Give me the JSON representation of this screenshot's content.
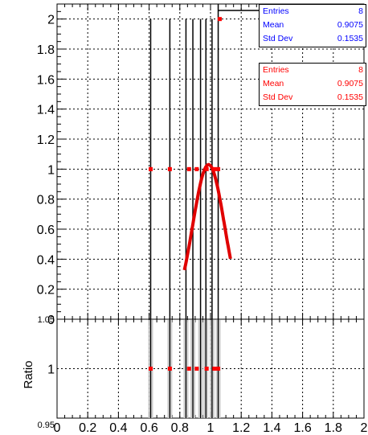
{
  "chart_data": [
    {
      "type": "scatter",
      "panel": "main",
      "xlim": [
        0,
        2
      ],
      "ylim": [
        0,
        2.1
      ],
      "yticks": [
        "0",
        "0.2",
        "0.4",
        "0.6",
        "0.8",
        "1",
        "1.2",
        "1.4",
        "1.6",
        "1.8",
        "2"
      ],
      "grid": true,
      "title": "",
      "xlabel": "",
      "ylabel": "",
      "series": [
        {
          "kind": "histogram",
          "color": "#000000",
          "points": [
            {
              "x": 0.61,
              "y": 2
            },
            {
              "x": 0.735,
              "y": 2
            },
            {
              "x": 0.84,
              "y": 2
            },
            {
              "x": 0.885,
              "y": 2
            },
            {
              "x": 0.935,
              "y": 2
            },
            {
              "x": 0.97,
              "y": 2
            },
            {
              "x": 1.01,
              "y": 2
            },
            {
              "x": 1.05,
              "y": 2
            }
          ]
        },
        {
          "kind": "markers",
          "color": "#ff0000",
          "points": [
            {
              "x": 0.61,
              "y": 1
            },
            {
              "x": 0.735,
              "y": 1
            },
            {
              "x": 0.86,
              "y": 1
            },
            {
              "x": 0.91,
              "y": 1
            },
            {
              "x": 0.975,
              "y": 1
            },
            {
              "x": 1.025,
              "y": 1
            },
            {
              "x": 1.05,
              "y": 1
            },
            {
              "x": 1.06,
              "y": 2
            }
          ]
        },
        {
          "kind": "fit",
          "color": "#e00000",
          "mean": 0.9875,
          "sigma": 0.104,
          "amplitude": 1.03,
          "range": [
            0.83,
            1.13
          ]
        }
      ],
      "stats_boxes": [
        {
          "id": "blue",
          "color": "#0000ff",
          "entries_label": "Entries",
          "entries": "8",
          "mean_label": "Mean",
          "mean": "0.9075",
          "std_label": "Std Dev",
          "std": "0.1535"
        },
        {
          "id": "red",
          "color": "#ff0000",
          "entries_label": "Entries",
          "entries": "8",
          "mean_label": "Mean",
          "mean": "0.9075",
          "std_label": "Std Dev",
          "std": "0.1535"
        }
      ]
    },
    {
      "type": "scatter",
      "panel": "ratio",
      "xlim": [
        0,
        2
      ],
      "ylim": [
        0.95,
        1.05
      ],
      "ylabel": "Ratio",
      "xticks": [
        "0",
        "0.2",
        "0.4",
        "0.6",
        "0.8",
        "1",
        "1.2",
        "1.4",
        "1.6",
        "1.8",
        "2"
      ],
      "yticks": [
        "0.95",
        "1",
        "1.05"
      ],
      "grid": true,
      "points": [
        {
          "x": 0.61,
          "y": 1
        },
        {
          "x": 0.735,
          "y": 1
        },
        {
          "x": 0.86,
          "y": 1
        },
        {
          "x": 0.91,
          "y": 1
        },
        {
          "x": 0.975,
          "y": 1
        },
        {
          "x": 1.025,
          "y": 1
        },
        {
          "x": 1.05,
          "y": 1
        }
      ],
      "color": "#ff0000"
    }
  ]
}
